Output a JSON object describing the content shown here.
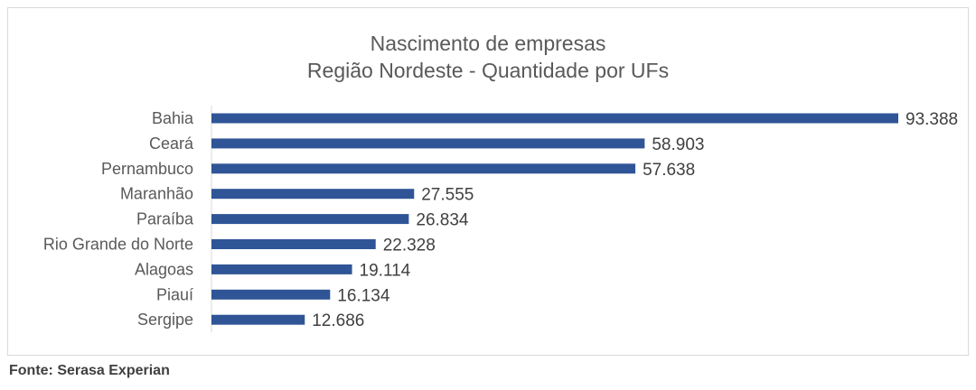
{
  "chart_data": {
    "type": "bar",
    "orientation": "horizontal",
    "title": "Nascimento de empresas",
    "subtitle": "Região Nordeste - Quantidade por UFs",
    "categories": [
      "Bahia",
      "Ceará",
      "Pernambuco",
      "Maranhão",
      "Paraíba",
      "Rio Grande do Norte",
      "Alagoas",
      "Piauí",
      "Sergipe"
    ],
    "values": [
      93388,
      58903,
      57638,
      27555,
      26834,
      22328,
      19114,
      16134,
      12686
    ],
    "data_labels": [
      "93.388",
      "58.903",
      "57.638",
      "27.555",
      "26.834",
      "22.328",
      "19.114",
      "16.134",
      "12.686"
    ],
    "xlim": [
      0,
      93388
    ],
    "grid": false,
    "legend": "none",
    "bar_color": "#2f5597"
  },
  "source": "Fonte: Serasa Experian"
}
